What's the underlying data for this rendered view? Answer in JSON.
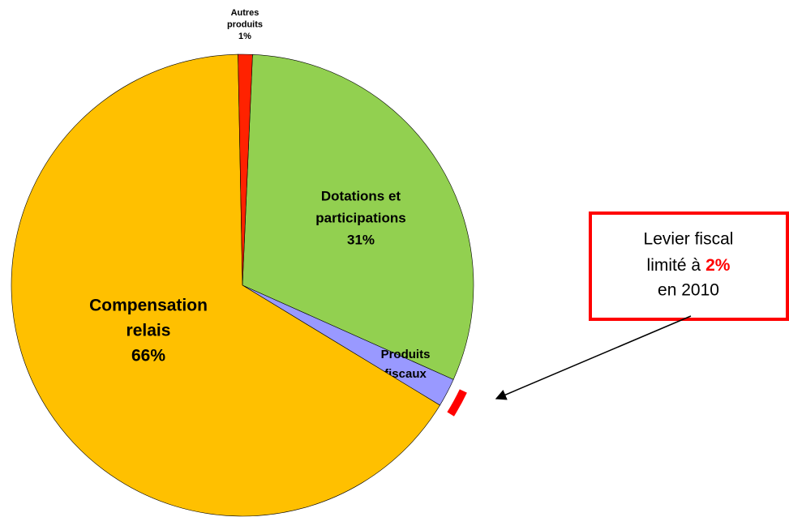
{
  "chart_data": {
    "type": "pie",
    "categories": [
      [
        "Dotations et",
        "participations"
      ],
      [
        "Produits",
        "fiscaux"
      ],
      [
        "Compensation",
        "relais"
      ],
      [
        "Autres",
        "produits"
      ]
    ],
    "values": [
      31,
      2,
      66,
      1
    ],
    "value_labels": [
      "31%",
      "2%",
      "66%",
      "1%"
    ],
    "colors": [
      "#92d050",
      "#9999ff",
      "#ffc000",
      "#ff2200"
    ],
    "annotation": {
      "lines": [
        "Levier fiscal",
        "limité à",
        "2%",
        "en 2010"
      ]
    }
  }
}
